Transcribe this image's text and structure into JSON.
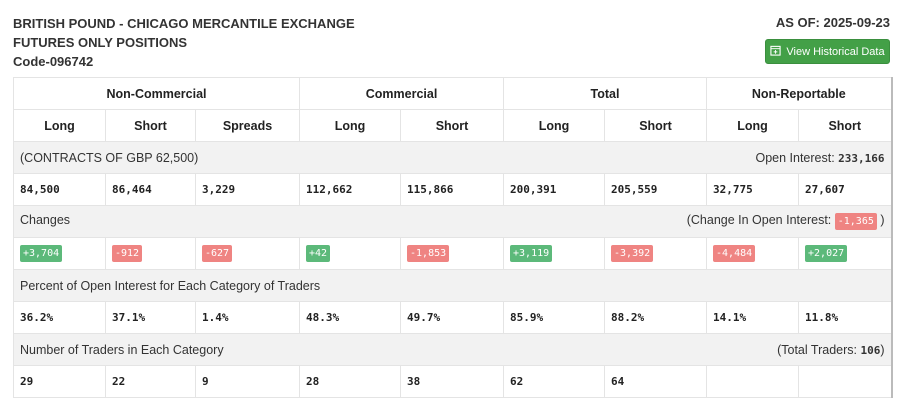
{
  "header": {
    "line1": "BRITISH POUND - CHICAGO MERCANTILE EXCHANGE",
    "line2": "FUTURES ONLY POSITIONS",
    "code": "Code-096742",
    "as_of": "AS OF: 2025-09-23",
    "button": "View Historical Data"
  },
  "groups": [
    "Non-Commercial",
    "Commercial",
    "Total",
    "Non-Reportable"
  ],
  "columns": [
    "Long",
    "Short",
    "Spreads",
    "Long",
    "Short",
    "Long",
    "Short",
    "Long",
    "Short"
  ],
  "contracts": {
    "label": "(CONTRACTS OF GBP 62,500)",
    "oi_label": "Open Interest: ",
    "oi_value": "233,166",
    "values": [
      "84,500",
      "86,464",
      "3,229",
      "112,662",
      "115,866",
      "200,391",
      "205,559",
      "32,775",
      "27,607"
    ]
  },
  "changes": {
    "label": "Changes",
    "oi_label": "(Change In Open Interest: ",
    "oi_value": "-1,365",
    "close": " )",
    "values": [
      "+3,704",
      "-912",
      "-627",
      "+42",
      "-1,853",
      "+3,119",
      "-3,392",
      "-4,484",
      "+2,027"
    ]
  },
  "percent": {
    "label": "Percent of Open Interest for Each Category of Traders",
    "values": [
      "36.2%",
      "37.1%",
      "1.4%",
      "48.3%",
      "49.7%",
      "85.9%",
      "88.2%",
      "14.1%",
      "11.8%"
    ]
  },
  "traders": {
    "label": "Number of Traders in Each Category",
    "total_label": "(Total Traders: ",
    "total_value": "106",
    "close": ")",
    "values": [
      "29",
      "22",
      "9",
      "28",
      "38",
      "62",
      "64",
      "",
      ""
    ]
  },
  "colors": {
    "positive": "#5cb97a",
    "negative": "#ef8482",
    "button": "#43a047"
  }
}
